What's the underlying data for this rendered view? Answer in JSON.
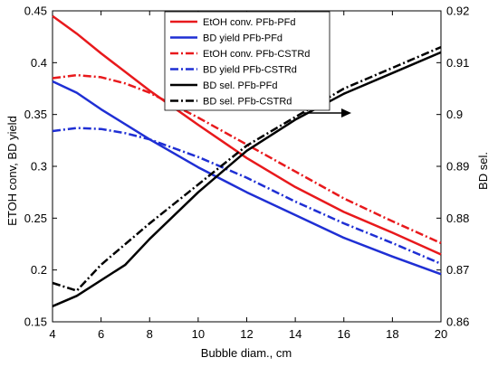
{
  "chart_data": {
    "type": "line",
    "xlabel": "Bubble diam., cm",
    "ylabel_left": "ETOH conv,  BD yield",
    "ylabel_right": "BD sel.",
    "xlim": [
      4,
      20
    ],
    "ylim_left": [
      0.15,
      0.45
    ],
    "ylim_right": [
      0.86,
      0.92
    ],
    "x_ticks": [
      "4",
      "6",
      "8",
      "10",
      "12",
      "14",
      "16",
      "18",
      "20"
    ],
    "y_ticks_left": [
      "0.15",
      "0.2",
      "0.25",
      "0.3",
      "0.35",
      "0.4",
      "0.45"
    ],
    "y_ticks_right": [
      "0.86",
      "0.87",
      "0.88",
      "0.89",
      "0.9",
      "0.91",
      "0.92"
    ],
    "grid": false,
    "legend_position": "top-center",
    "annotation": "arrow pointing to right axis",
    "series": [
      {
        "name": "EtOH conv. PFb-PFd",
        "axis": "left",
        "color": "#e8191c",
        "dash": "solid",
        "x": [
          4,
          5,
          6,
          8,
          10,
          12,
          14,
          16,
          18,
          20
        ],
        "y": [
          0.445,
          0.428,
          0.409,
          0.373,
          0.34,
          0.308,
          0.28,
          0.256,
          0.236,
          0.215
        ]
      },
      {
        "name": "BD yield PFb-PFd",
        "axis": "left",
        "color": "#1f2fd4",
        "dash": "solid",
        "x": [
          4,
          5,
          6,
          8,
          10,
          12,
          14,
          16,
          18,
          20
        ],
        "y": [
          0.382,
          0.371,
          0.355,
          0.326,
          0.299,
          0.275,
          0.253,
          0.231,
          0.213,
          0.196
        ]
      },
      {
        "name": "EtOH conv. PFb-CSTRd",
        "axis": "left",
        "color": "#e8191c",
        "dash": "dashdot",
        "x": [
          4,
          5,
          6,
          7,
          8,
          10,
          12,
          14,
          16,
          18,
          20
        ],
        "y": [
          0.385,
          0.388,
          0.386,
          0.38,
          0.371,
          0.347,
          0.321,
          0.295,
          0.269,
          0.247,
          0.226
        ]
      },
      {
        "name": "BD yield PFb-CSTRd",
        "axis": "left",
        "color": "#1f2fd4",
        "dash": "dashdot",
        "x": [
          4,
          5,
          6,
          7,
          8,
          10,
          12,
          14,
          16,
          18,
          20
        ],
        "y": [
          0.334,
          0.337,
          0.336,
          0.332,
          0.326,
          0.309,
          0.289,
          0.266,
          0.245,
          0.226,
          0.206
        ]
      },
      {
        "name": "BD sel. PFb-PFd",
        "axis": "right",
        "color": "#000000",
        "dash": "solid",
        "x": [
          4,
          5,
          7,
          8,
          10,
          12,
          14,
          16,
          18,
          20
        ],
        "y": [
          0.863,
          0.865,
          0.871,
          0.876,
          0.885,
          0.893,
          0.899,
          0.904,
          0.908,
          0.912
        ]
      },
      {
        "name": "BD sel. PFb-CSTRd",
        "axis": "right",
        "color": "#000000",
        "dash": "dashdot",
        "x": [
          4,
          5,
          6,
          8,
          10,
          12,
          14,
          16,
          18,
          20
        ],
        "y": [
          0.8675,
          0.866,
          0.871,
          0.879,
          0.8865,
          0.894,
          0.8995,
          0.905,
          0.909,
          0.913
        ]
      }
    ]
  }
}
